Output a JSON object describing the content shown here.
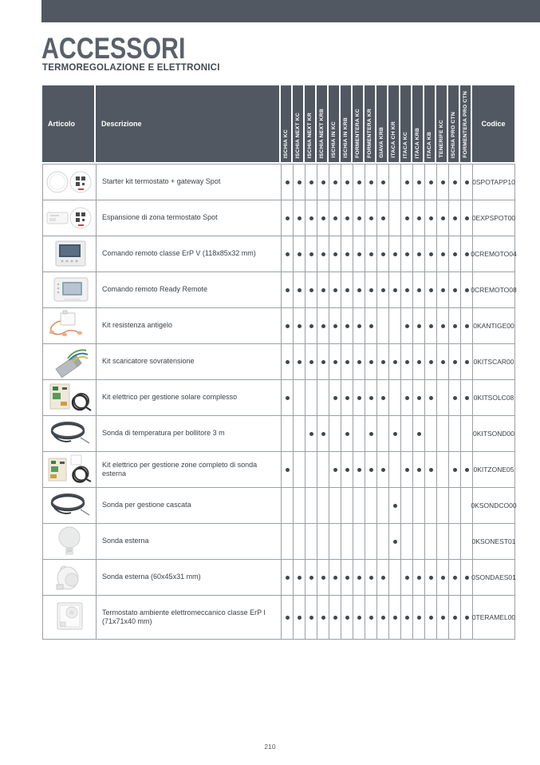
{
  "page": {
    "title": "ACCESSORI",
    "subtitle": "TERMOREGOLAZIONE E ELETTRONICI",
    "page_number": "210"
  },
  "colors": {
    "header_bg": "#515861",
    "top_bar": "#515861",
    "grid_border": "#9aa0a6",
    "dot": "#41474d"
  },
  "table": {
    "columns": {
      "articolo": "Articolo",
      "descrizione": "Descrizione",
      "codice": "Codice"
    },
    "models": [
      "ISCHIA KC",
      "ISCHIA NEXT KC",
      "ISCHIA NEXT KR",
      "ISCHIA NEXT KRB",
      "ISCHIA IN KC",
      "ISCHIA IN KRB",
      "FORMENTERA KC",
      "FORMENTERA KR",
      "GIAVA KRB",
      "ITACA CH KR",
      "ITACA KC",
      "ITACA KRB",
      "ITACA KB",
      "TENERIFE KC",
      "ISCHIA PRO CTN",
      "FORMENTERA PRO CTN"
    ],
    "rows": [
      {
        "image": "thermostat-gateway",
        "descrizione": "Starter kit termostato + gateway Spot",
        "compat": [
          1,
          1,
          1,
          1,
          1,
          1,
          1,
          1,
          1,
          0,
          1,
          1,
          1,
          1,
          1,
          1
        ],
        "codice": "0SPOTAPP10"
      },
      {
        "image": "zone-expansion-module",
        "descrizione": "Espansione di zona termostato Spot",
        "compat": [
          1,
          1,
          1,
          1,
          1,
          1,
          1,
          1,
          1,
          0,
          1,
          1,
          1,
          1,
          1,
          1
        ],
        "codice": "0EXPSPOT00"
      },
      {
        "image": "remote-control-erp-v",
        "descrizione": "Comando remoto classe ErP V (118x85x32 mm)",
        "compat": [
          1,
          1,
          1,
          1,
          1,
          1,
          1,
          1,
          1,
          1,
          1,
          1,
          1,
          1,
          1,
          1
        ],
        "codice": "0CREMOTO04"
      },
      {
        "image": "ready-remote",
        "descrizione": "Comando remoto Ready Remote",
        "compat": [
          1,
          1,
          1,
          1,
          1,
          1,
          1,
          1,
          1,
          1,
          1,
          1,
          1,
          1,
          1,
          1
        ],
        "codice": "0CREMOTO08"
      },
      {
        "image": "antifreeze-kit",
        "descrizione": "Kit resistenza antigelo",
        "compat": [
          1,
          1,
          1,
          1,
          1,
          1,
          1,
          1,
          0,
          0,
          1,
          1,
          1,
          1,
          1,
          1
        ],
        "codice": "0KANTIGE00"
      },
      {
        "image": "surge-arrester-kit",
        "descrizione": "Kit scaricatore sovratensione",
        "compat": [
          1,
          1,
          1,
          1,
          1,
          1,
          1,
          1,
          1,
          1,
          1,
          1,
          1,
          1,
          1,
          1
        ],
        "codice": "0KITSCAR00"
      },
      {
        "image": "solar-electric-kit",
        "descrizione": "Kit elettrico per gestione solare complesso",
        "compat": [
          1,
          0,
          0,
          0,
          1,
          1,
          1,
          1,
          1,
          0,
          1,
          1,
          1,
          0,
          1,
          1
        ],
        "codice": "0KITSOLC08"
      },
      {
        "image": "probe-cable",
        "descrizione": "Sonda di temperatura per bollitore 3 m",
        "compat": [
          0,
          0,
          1,
          1,
          0,
          1,
          0,
          1,
          0,
          1,
          0,
          1,
          0,
          0,
          0,
          0
        ],
        "codice": "0KITSOND00"
      },
      {
        "image": "zone-electric-kit",
        "descrizione": "Kit elettrico per gestione zone completo di sonda esterna",
        "compat": [
          1,
          0,
          0,
          0,
          1,
          1,
          1,
          1,
          1,
          0,
          1,
          1,
          1,
          0,
          1,
          1
        ],
        "codice": "0KITZONE05"
      },
      {
        "image": "probe-cable",
        "descrizione": "Sonda per gestione cascata",
        "compat": [
          0,
          0,
          0,
          0,
          0,
          0,
          0,
          0,
          0,
          1,
          0,
          0,
          0,
          0,
          0,
          0
        ],
        "codice": "0KSONDCO00"
      },
      {
        "image": "round-external-sensor",
        "descrizione": "Sonda esterna",
        "compat": [
          0,
          0,
          0,
          0,
          0,
          0,
          0,
          0,
          0,
          1,
          0,
          0,
          0,
          0,
          0,
          0
        ],
        "codice": "0KSONEST01"
      },
      {
        "image": "external-sensor-small",
        "descrizione": "Sonda esterna (60x45x31 mm)",
        "compat": [
          1,
          1,
          1,
          1,
          1,
          1,
          1,
          1,
          1,
          0,
          1,
          1,
          1,
          1,
          1,
          1
        ],
        "codice": "0SONDAES01"
      },
      {
        "image": "electromechanical-thermostat",
        "descrizione": "Termostato ambiente elettromeccanico classe ErP I (71x71x40 mm)",
        "compat": [
          1,
          1,
          1,
          1,
          1,
          1,
          1,
          1,
          1,
          1,
          1,
          1,
          1,
          1,
          1,
          1
        ],
        "codice": "0TERAMEL00"
      }
    ]
  }
}
